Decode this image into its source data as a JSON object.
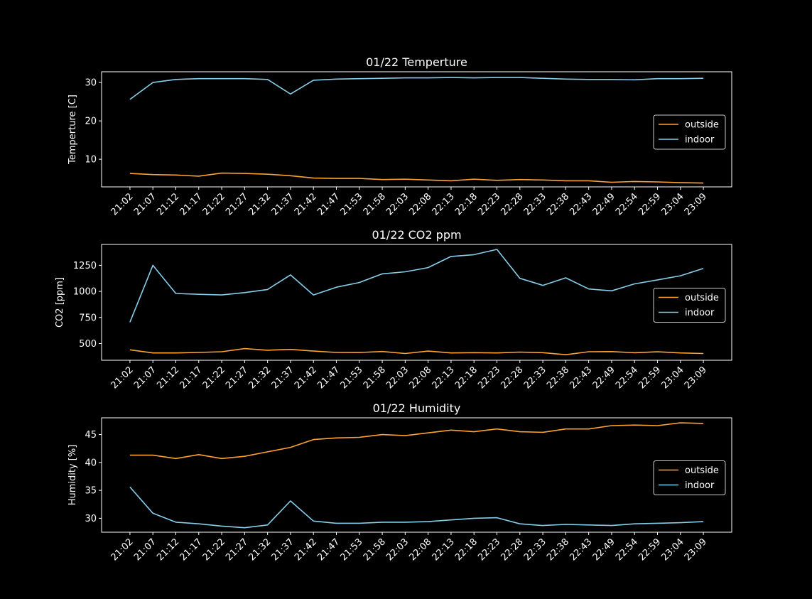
{
  "colors": {
    "outside": "#ffa22f",
    "indoor": "#87ceeb",
    "axes": "#ffffff",
    "background": "#000000"
  },
  "chart_data": [
    {
      "type": "line",
      "title": "01/22 Temperture",
      "xlabel": "",
      "ylabel": "Temperture [C]",
      "categories": [
        "21:02",
        "21:07",
        "21:12",
        "21:17",
        "21:22",
        "21:27",
        "21:32",
        "21:37",
        "21:42",
        "21:47",
        "21:53",
        "21:58",
        "22:03",
        "22:08",
        "22:13",
        "22:18",
        "22:23",
        "22:28",
        "22:33",
        "22:38",
        "22:43",
        "22:49",
        "22:54",
        "22:59",
        "23:04",
        "23:09"
      ],
      "ylim": [
        2.8,
        32.8
      ],
      "yticks": [
        10,
        20,
        30
      ],
      "grid": false,
      "legend": "center-right",
      "series": [
        {
          "name": "outside",
          "values": [
            6.3,
            6.0,
            5.9,
            5.6,
            6.4,
            6.3,
            6.1,
            5.7,
            5.1,
            5.0,
            5.0,
            4.7,
            4.8,
            4.6,
            4.4,
            4.8,
            4.5,
            4.7,
            4.6,
            4.4,
            4.4,
            4.0,
            4.2,
            4.1,
            3.9,
            3.8
          ]
        },
        {
          "name": "indoor",
          "values": [
            25.6,
            30.0,
            30.8,
            31.0,
            31.0,
            31.0,
            30.8,
            27.0,
            30.6,
            30.9,
            31.0,
            31.1,
            31.2,
            31.2,
            31.3,
            31.2,
            31.3,
            31.3,
            31.1,
            30.9,
            30.8,
            30.8,
            30.7,
            31.0,
            31.0,
            31.1
          ]
        }
      ]
    },
    {
      "type": "line",
      "title": "01/22 CO2 ppm",
      "xlabel": "",
      "ylabel": "CO2 [ppm]",
      "categories": [
        "21:02",
        "21:07",
        "21:12",
        "21:17",
        "21:22",
        "21:27",
        "21:32",
        "21:37",
        "21:42",
        "21:47",
        "21:53",
        "21:58",
        "22:03",
        "22:08",
        "22:13",
        "22:18",
        "22:23",
        "22:28",
        "22:33",
        "22:38",
        "22:43",
        "22:49",
        "22:54",
        "22:59",
        "23:04",
        "23:09"
      ],
      "ylim": [
        340,
        1450
      ],
      "yticks": [
        500,
        750,
        1000,
        1250
      ],
      "grid": false,
      "legend": "center-right",
      "series": [
        {
          "name": "outside",
          "values": [
            440,
            410,
            410,
            415,
            422,
            452,
            436,
            444,
            428,
            415,
            414,
            424,
            405,
            428,
            410,
            413,
            410,
            418,
            413,
            393,
            422,
            423,
            412,
            421,
            410,
            405
          ]
        },
        {
          "name": "indoor",
          "values": [
            705,
            1250,
            980,
            972,
            966,
            988,
            1018,
            1158,
            966,
            1040,
            1085,
            1168,
            1188,
            1228,
            1335,
            1352,
            1402,
            1125,
            1058,
            1130,
            1023,
            1005,
            1072,
            1110,
            1150,
            1220
          ]
        }
      ]
    },
    {
      "type": "line",
      "title": "01/22 Humidity",
      "xlabel": "",
      "ylabel": "Humidity [%]",
      "categories": [
        "21:02",
        "21:07",
        "21:12",
        "21:17",
        "21:22",
        "21:27",
        "21:32",
        "21:37",
        "21:42",
        "21:47",
        "21:53",
        "21:58",
        "22:03",
        "22:08",
        "22:13",
        "22:18",
        "22:23",
        "22:28",
        "22:33",
        "22:38",
        "22:43",
        "22:49",
        "22:54",
        "22:59",
        "23:04",
        "23:09"
      ],
      "ylim": [
        27.5,
        48.0
      ],
      "yticks": [
        30,
        35,
        40,
        45
      ],
      "grid": false,
      "legend": "center-right",
      "series": [
        {
          "name": "outside",
          "values": [
            41.3,
            41.3,
            40.7,
            41.4,
            40.7,
            41.1,
            41.9,
            42.7,
            44.1,
            44.4,
            44.5,
            45.0,
            44.8,
            45.3,
            45.8,
            45.5,
            46.0,
            45.5,
            45.4,
            46.0,
            46.0,
            46.6,
            46.7,
            46.6,
            47.1,
            47.0
          ]
        },
        {
          "name": "indoor",
          "values": [
            35.6,
            30.9,
            29.3,
            29.0,
            28.6,
            28.3,
            28.8,
            33.1,
            29.5,
            29.1,
            29.1,
            29.3,
            29.3,
            29.4,
            29.7,
            30.0,
            30.1,
            29.0,
            28.7,
            28.9,
            28.8,
            28.7,
            29.0,
            29.1,
            29.2,
            29.4
          ]
        }
      ]
    }
  ]
}
